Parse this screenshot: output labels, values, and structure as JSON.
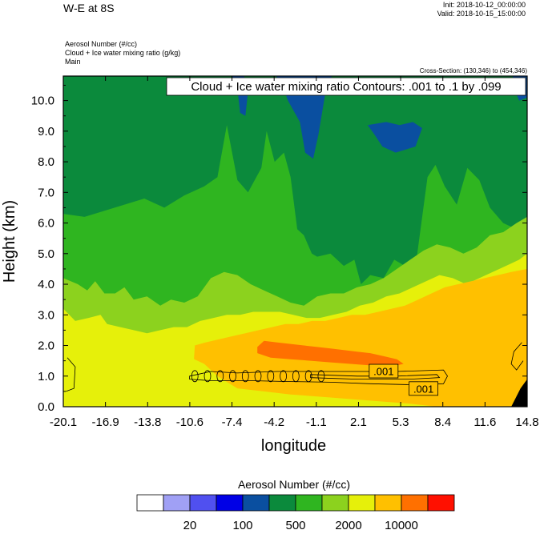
{
  "header": {
    "title": "W-E at 8S",
    "init": "Init: 2018-10-12_00:00:00",
    "valid": "Valid: 2018-10-15_15:00:00",
    "field1": "Aerosol Number   (#/cc)",
    "field2": "Cloud + Ice water mixing ratio   (g/kg)",
    "field3": "Main",
    "cross_section": "Cross-Section: (130,346) to (454,346)"
  },
  "chart_data": {
    "type": "heatmap",
    "annotation": "Cloud + Ice water mixing ratio Contours: .001 to .1 by .099",
    "xlabel": "longitude",
    "ylabel": "Height (km)",
    "xlim": [
      -20.1,
      14.8
    ],
    "ylim": [
      0.0,
      10.8
    ],
    "x_ticks": [
      "-20.1",
      "-16.9",
      "-13.8",
      "-10.6",
      "-7.4",
      "-4.2",
      "-1.1",
      "2.1",
      "5.3",
      "8.4",
      "11.6",
      "14.8"
    ],
    "y_ticks": [
      {
        "value": 0.0,
        "label": "0.0"
      },
      {
        "value": 1.0,
        "label": "1.0"
      },
      {
        "value": 2.0,
        "label": "2.0"
      },
      {
        "value": 3.0,
        "label": "3.0"
      },
      {
        "value": 4.0,
        "label": "4.0"
      },
      {
        "value": 5.0,
        "label": "5.0"
      },
      {
        "value": 6.0,
        "label": "6.0"
      },
      {
        "value": 7.0,
        "label": "7.0"
      },
      {
        "value": 8.0,
        "label": "8.0"
      },
      {
        "value": 9.0,
        "label": "9.0"
      },
      {
        "value": 10.0,
        "label": "10.0"
      }
    ],
    "contour_labels": [
      {
        "text": ".001",
        "x": 4.0,
        "y": 1.15
      },
      {
        "text": ".001",
        "x": 7.0,
        "y": 0.58
      }
    ],
    "colorbar": {
      "title": "Aerosol Number  (#/cc)",
      "colors": [
        "#ffffff",
        "#a0a0f5",
        "#5050f0",
        "#0000e6",
        "#0a4fa0",
        "#0b8a3c",
        "#2fb520",
        "#8cd21e",
        "#e6f00a",
        "#ffc000",
        "#ff7000",
        "#ff1000"
      ],
      "labels": [
        {
          "text": "20",
          "boundary": 2
        },
        {
          "text": "100",
          "boundary": 4
        },
        {
          "text": "500",
          "boundary": 6
        },
        {
          "text": "2000",
          "boundary": 8
        },
        {
          "text": "10000",
          "boundary": 10
        }
      ]
    }
  }
}
